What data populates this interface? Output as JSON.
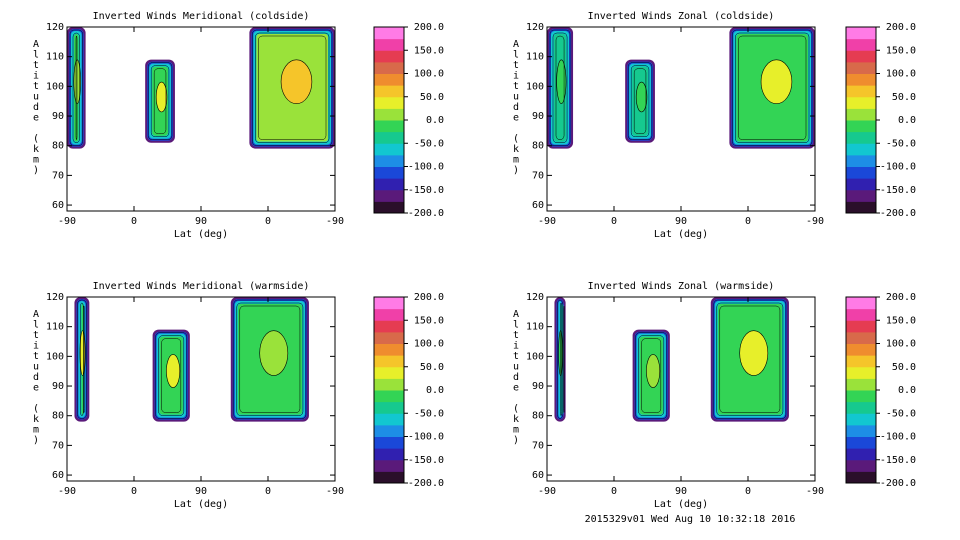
{
  "chart_data": [
    {
      "type": "heatmap",
      "title": "Inverted Winds Meridional (coldside)",
      "xlabel": "Lat (deg)",
      "ylabel": "Altitude (km)",
      "x_ticks": [
        "-90",
        "0",
        "90",
        "0",
        "-90"
      ],
      "y_ticks": [
        60,
        70,
        80,
        90,
        100,
        110,
        120
      ],
      "ylim": [
        58,
        120
      ],
      "colorbar_ticks": [
        "200.0",
        "150.0",
        "100.0",
        "50.0",
        "0.0",
        "-50.0",
        "-100.0",
        "-150.0",
        "-200.0"
      ],
      "colorbar_range": [
        -200,
        200
      ],
      "regions": [
        {
          "x0": -90,
          "x1": -65,
          "y0": 79,
          "y1": 120,
          "value": -20
        },
        {
          "x0": 15,
          "x1": 55,
          "y0": 81,
          "y1": 109,
          "value": -10
        },
        {
          "x0": 155,
          "x1": 270,
          "y0": 79,
          "y1": 120,
          "value": 15
        }
      ]
    },
    {
      "type": "heatmap",
      "title": "Inverted Winds Zonal (coldside)",
      "xlabel": "Lat (deg)",
      "ylabel": "Altitude (km)",
      "x_ticks": [
        "-90",
        "0",
        "90",
        "0",
        "-90"
      ],
      "y_ticks": [
        60,
        70,
        80,
        90,
        100,
        110,
        120
      ],
      "ylim": [
        58,
        120
      ],
      "colorbar_ticks": [
        "200.0",
        "150.0",
        "100.0",
        "50.0",
        "0.0",
        "-50.0",
        "-100.0",
        "-150.0",
        "-200.0"
      ],
      "colorbar_range": [
        -200,
        200
      ],
      "regions": [
        {
          "x0": -90,
          "x1": -55,
          "y0": 79,
          "y1": 120,
          "value": -50
        },
        {
          "x0": 15,
          "x1": 55,
          "y0": 81,
          "y1": 109,
          "value": -50
        },
        {
          "x0": 155,
          "x1": 270,
          "y0": 79,
          "y1": 120,
          "value": -10
        }
      ]
    },
    {
      "type": "heatmap",
      "title": "Inverted Winds Meridional (warmside)",
      "xlabel": "Lat (deg)",
      "ylabel": "Altitude (km)",
      "x_ticks": [
        "-90",
        "0",
        "90",
        "0",
        "-90"
      ],
      "y_ticks": [
        60,
        70,
        80,
        90,
        100,
        110,
        120
      ],
      "ylim": [
        58,
        120
      ],
      "colorbar_ticks": [
        "200.0",
        "150.0",
        "100.0",
        "50.0",
        "0.0",
        "-50.0",
        "-100.0",
        "-150.0",
        "-200.0"
      ],
      "colorbar_range": [
        -200,
        200
      ],
      "regions": [
        {
          "x0": -80,
          "x1": -60,
          "y0": 78,
          "y1": 120,
          "value": -5
        },
        {
          "x0": 25,
          "x1": 75,
          "y0": 78,
          "y1": 109,
          "value": -10
        },
        {
          "x0": 130,
          "x1": 235,
          "y0": 78,
          "y1": 120,
          "value": -25
        }
      ]
    },
    {
      "type": "heatmap",
      "title": "Inverted Winds Zonal (warmside)",
      "xlabel": "Lat (deg)",
      "ylabel": "Altitude (km)",
      "x_ticks": [
        "-90",
        "0",
        "90",
        "0",
        "-90"
      ],
      "y_ticks": [
        60,
        70,
        80,
        90,
        100,
        110,
        120
      ],
      "ylim": [
        58,
        120
      ],
      "colorbar_ticks": [
        "200.0",
        "150.0",
        "100.0",
        "50.0",
        "0.0",
        "-50.0",
        "-100.0",
        "-150.0",
        "-200.0"
      ],
      "colorbar_range": [
        -200,
        200
      ],
      "regions": [
        {
          "x0": -80,
          "x1": -65,
          "y0": 78,
          "y1": 120,
          "value": -60
        },
        {
          "x0": 25,
          "x1": 75,
          "y0": 78,
          "y1": 109,
          "value": -20
        },
        {
          "x0": 130,
          "x1": 235,
          "y0": 78,
          "y1": 120,
          "value": -15
        }
      ]
    }
  ],
  "colors": {
    "scale": [
      "#2a0f2a",
      "#5a1a7a",
      "#3020b0",
      "#1a48d8",
      "#1d8ee6",
      "#12c7d0",
      "#16c98f",
      "#33d455",
      "#9ae23a",
      "#e7ef2a",
      "#f5c52a",
      "#ef8d2e",
      "#d86a4a",
      "#e53c52",
      "#f040a8",
      "#ff7be6"
    ]
  },
  "footer": "2015329v01 Wed Aug 10 10:32:18 2016"
}
